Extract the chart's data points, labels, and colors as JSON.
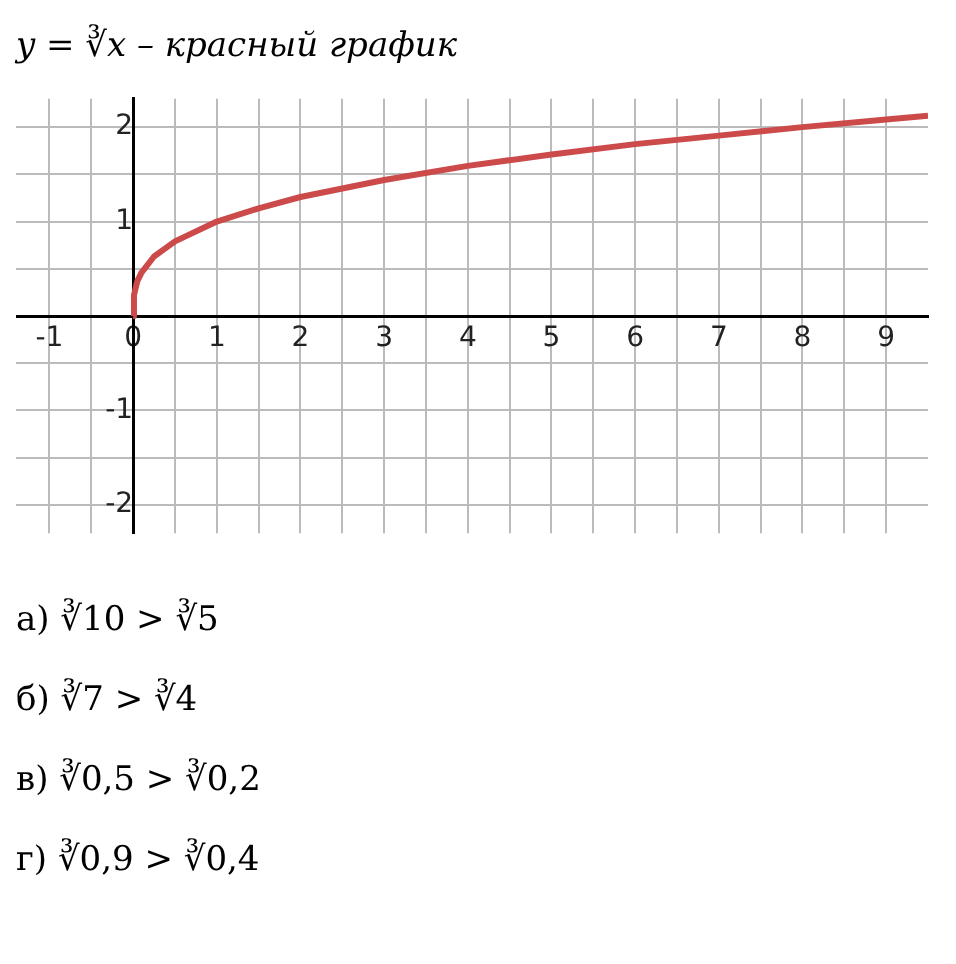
{
  "chart_data": {
    "type": "line",
    "title": "y = ∛x – красный график",
    "x": [
      0,
      0.01,
      0.05,
      0.1,
      0.25,
      0.5,
      1,
      1.5,
      2,
      3,
      4,
      5,
      6,
      7,
      8,
      9,
      9.5
    ],
    "series": [
      {
        "color": "#cc4a4a",
        "values": [
          0,
          0.22,
          0.37,
          0.46,
          0.63,
          0.79,
          1,
          1.14,
          1.26,
          1.44,
          1.59,
          1.71,
          1.82,
          1.91,
          2,
          2.08,
          2.12
        ]
      }
    ],
    "xlim": [
      -1.4,
      9.5
    ],
    "ylim": [
      -2.3,
      2.3
    ],
    "xticks": [
      {
        "value": -1,
        "label": "-1"
      },
      {
        "value": -0.5,
        "label": null
      },
      0,
      {
        "value": 0.5,
        "label": null
      },
      1,
      {
        "value": 1.5,
        "label": null
      },
      2,
      {
        "value": 2.5,
        "label": null
      },
      3,
      {
        "value": 3.5,
        "label": null
      },
      4,
      {
        "value": 4.5,
        "label": null
      },
      5,
      {
        "value": 5.5,
        "label": null
      },
      6,
      {
        "value": 6.5,
        "label": null
      },
      7,
      {
        "value": 7.5,
        "label": null
      },
      8,
      {
        "value": 8.5,
        "label": null
      },
      9
    ],
    "yticks": [
      -2,
      {
        "value": -1.5,
        "label": null
      },
      -1,
      {
        "value": -0.5,
        "label": null
      },
      {
        "value": 0,
        "label": null
      },
      {
        "value": 0.5,
        "label": null
      },
      1,
      {
        "value": 1.5,
        "label": null
      },
      2
    ],
    "grid": true,
    "legend": false,
    "marker": "none",
    "line_style": "solid",
    "annotations": [
      "а) ∛10 > ∛5",
      "б) ∛7 > ∛4",
      "в) ∛0,5 > ∛0,2",
      "г) ∛0,9 > ∛0,4"
    ]
  }
}
